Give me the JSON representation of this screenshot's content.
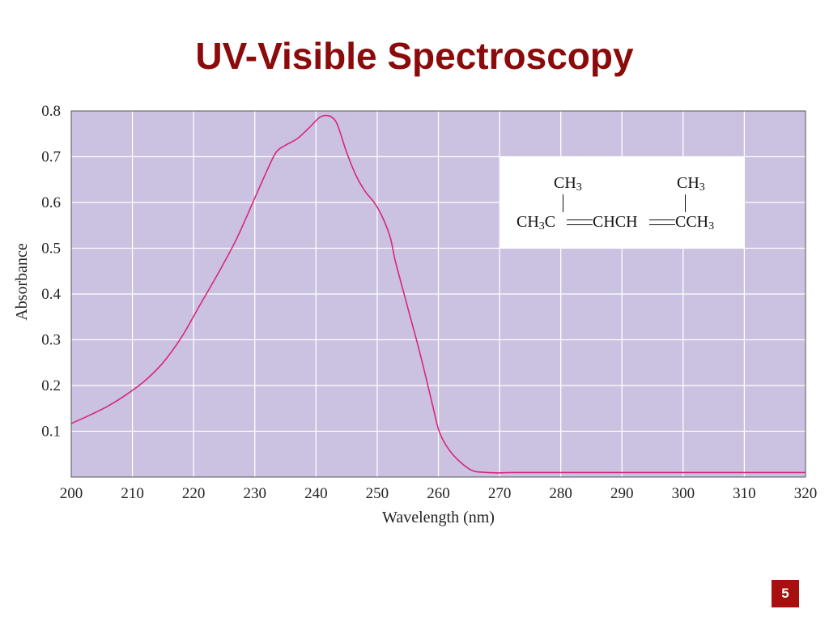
{
  "slide": {
    "title": "UV-Visible Spectroscopy",
    "page_number": "5"
  },
  "structure": {
    "top_left": "CH",
    "top_right": "CH",
    "sub3": "3",
    "part1": "CH",
    "part2": "C",
    "part3": "CHCH",
    "part4": "CCH"
  },
  "colors": {
    "title": "#8b0a0a",
    "plot_bg": "#cbc1e0",
    "curve": "#d6287c",
    "grid": "#ffffff",
    "badge": "#a80f0f"
  },
  "chart_data": {
    "type": "line",
    "xlabel": "Wavelength (nm)",
    "ylabel": "Absorbance",
    "xlim": [
      200,
      320
    ],
    "ylim": [
      0,
      0.8
    ],
    "xticks": [
      200,
      210,
      220,
      230,
      240,
      250,
      260,
      270,
      280,
      290,
      300,
      310,
      320
    ],
    "yticks": [
      0.1,
      0.2,
      0.3,
      0.4,
      0.5,
      0.6,
      0.7,
      0.8
    ],
    "grid": true,
    "series": [
      {
        "x": [
          200,
          203,
          206,
          209,
          212,
          215,
          218,
          221,
          224,
          227,
          230,
          232,
          233.5,
          235,
          237,
          239,
          240.5,
          241.5,
          242.5,
          243.5,
          245,
          246.5,
          248,
          250,
          252,
          253,
          255,
          257,
          259,
          260,
          261,
          262,
          263,
          264,
          265,
          266,
          268,
          270,
          272,
          280,
          300,
          320
        ],
        "y": [
          0.117,
          0.135,
          0.155,
          0.18,
          0.21,
          0.25,
          0.305,
          0.375,
          0.445,
          0.52,
          0.61,
          0.67,
          0.71,
          0.725,
          0.74,
          0.765,
          0.785,
          0.79,
          0.787,
          0.77,
          0.71,
          0.66,
          0.625,
          0.59,
          0.53,
          0.47,
          0.37,
          0.27,
          0.16,
          0.105,
          0.075,
          0.055,
          0.04,
          0.028,
          0.018,
          0.012,
          0.01,
          0.009,
          0.01,
          0.01,
          0.01,
          0.01
        ]
      }
    ]
  }
}
